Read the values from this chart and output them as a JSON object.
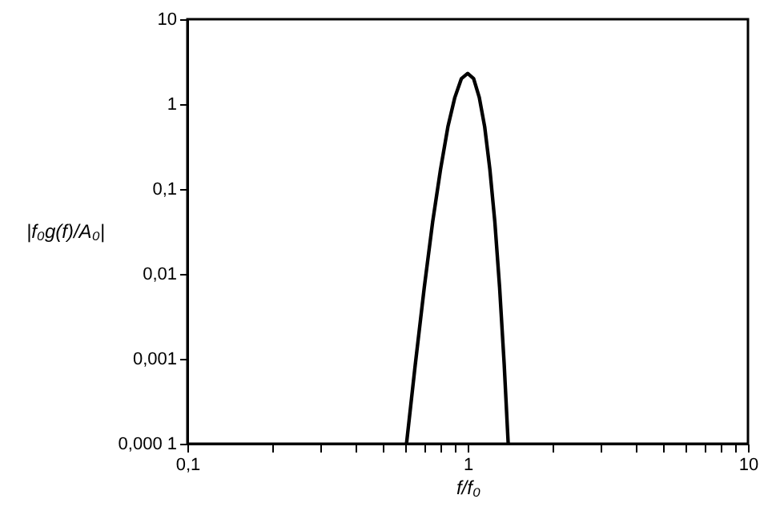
{
  "chart_data": {
    "type": "line",
    "xlabel": "f/f₀",
    "ylabel": "|f₀g(f)/A₀|",
    "log": "xy",
    "grid": false,
    "marker": "none",
    "line_style": "solid",
    "x": [
      0.605,
      0.65,
      0.7,
      0.75,
      0.8,
      0.85,
      0.9,
      0.95,
      1.0,
      1.05,
      1.1,
      1.15,
      1.2,
      1.25,
      1.3,
      1.35,
      1.395
    ],
    "series": [
      {
        "color": "#000000",
        "values": [
          0.0001,
          0.00085,
          0.0069,
          0.041,
          0.17,
          0.54,
          1.2,
          2.0,
          2.3,
          2.0,
          1.2,
          0.54,
          0.17,
          0.041,
          0.0069,
          0.00085,
          0.0001
        ]
      }
    ],
    "xlim": [
      0.1,
      10
    ],
    "ylim": [
      0.0001,
      10
    ],
    "xticks": [
      {
        "value": 0.1,
        "label": "0,1"
      },
      {
        "value": 0.2,
        "label": null
      },
      {
        "value": 0.3,
        "label": null
      },
      {
        "value": 0.4,
        "label": null
      },
      {
        "value": 0.5,
        "label": null
      },
      {
        "value": 0.6,
        "label": null
      },
      {
        "value": 0.7,
        "label": null
      },
      {
        "value": 0.8,
        "label": null
      },
      {
        "value": 0.9,
        "label": null
      },
      1,
      {
        "value": 2,
        "label": null
      },
      {
        "value": 3,
        "label": null
      },
      {
        "value": 4,
        "label": null
      },
      {
        "value": 5,
        "label": null
      },
      {
        "value": 6,
        "label": null
      },
      {
        "value": 7,
        "label": null
      },
      {
        "value": 8,
        "label": null
      },
      {
        "value": 9,
        "label": null
      },
      10
    ],
    "yticks": [
      {
        "value": 0.0001,
        "label": "0,000 1"
      },
      {
        "value": 0.001,
        "label": "0,001"
      },
      {
        "value": 0.01,
        "label": "0,01"
      },
      {
        "value": 0.1,
        "label": "0,1"
      },
      1,
      10
    ]
  }
}
